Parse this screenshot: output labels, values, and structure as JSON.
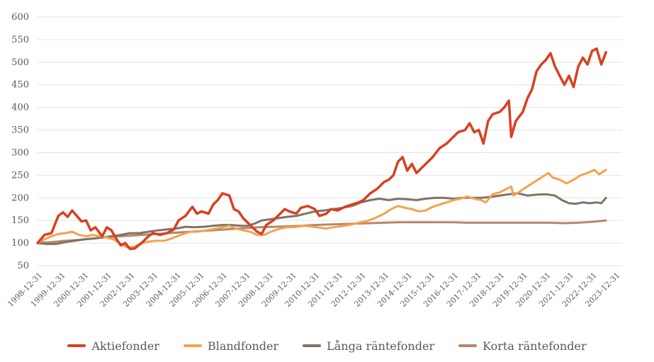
{
  "chart_data": {
    "type": "line",
    "title": "",
    "xlabel": "",
    "ylabel": "",
    "ylim": [
      50,
      600
    ],
    "yticks": [
      50,
      100,
      150,
      200,
      250,
      300,
      350,
      400,
      450,
      500,
      550,
      600
    ],
    "xticks": [
      "1998-12-31",
      "1999-12-31",
      "2000-12-31",
      "2001-12-31",
      "2002-12-31",
      "2003-12-31",
      "2004-12-31",
      "2005-12-31",
      "2006-12-31",
      "2007-12-31",
      "2008-12-31",
      "2009-12-31",
      "2010-12-31",
      "2011-12-31",
      "2012-12-31",
      "2013-12-31",
      "2014-12-31",
      "2015-12-31",
      "2016-12-31",
      "2017-12-31",
      "2018-12-31",
      "2019-12-31",
      "2020-12-31",
      "2021-12-31",
      "2022-12-31",
      "2023-12-31"
    ],
    "xlim": [
      1998.9,
      2024.2
    ],
    "grid": "horizontal",
    "legend_position": "bottom",
    "series": [
      {
        "name": "Aktiefonder",
        "color": "#d9401f",
        "points": [
          [
            1998.9,
            100
          ],
          [
            1999.2,
            118
          ],
          [
            1999.5,
            122
          ],
          [
            1999.8,
            160
          ],
          [
            2000.0,
            168
          ],
          [
            2000.2,
            158
          ],
          [
            2000.4,
            172
          ],
          [
            2000.6,
            160
          ],
          [
            2000.8,
            148
          ],
          [
            2001.0,
            150
          ],
          [
            2001.2,
            128
          ],
          [
            2001.4,
            135
          ],
          [
            2001.7,
            115
          ],
          [
            2001.9,
            135
          ],
          [
            2002.1,
            128
          ],
          [
            2002.3,
            110
          ],
          [
            2002.5,
            95
          ],
          [
            2002.7,
            100
          ],
          [
            2002.9,
            87
          ],
          [
            2003.1,
            88
          ],
          [
            2003.4,
            100
          ],
          [
            2003.7,
            115
          ],
          [
            2003.9,
            122
          ],
          [
            2004.2,
            118
          ],
          [
            2004.5,
            122
          ],
          [
            2004.8,
            130
          ],
          [
            2005.0,
            150
          ],
          [
            2005.3,
            160
          ],
          [
            2005.6,
            180
          ],
          [
            2005.8,
            165
          ],
          [
            2006.0,
            170
          ],
          [
            2006.3,
            165
          ],
          [
            2006.5,
            185
          ],
          [
            2006.7,
            195
          ],
          [
            2006.9,
            210
          ],
          [
            2007.2,
            205
          ],
          [
            2007.4,
            175
          ],
          [
            2007.6,
            170
          ],
          [
            2007.8,
            155
          ],
          [
            2008.0,
            145
          ],
          [
            2008.2,
            135
          ],
          [
            2008.4,
            125
          ],
          [
            2008.6,
            120
          ],
          [
            2008.8,
            140
          ],
          [
            2009.1,
            150
          ],
          [
            2009.4,
            165
          ],
          [
            2009.6,
            175
          ],
          [
            2009.8,
            170
          ],
          [
            2010.1,
            165
          ],
          [
            2010.3,
            178
          ],
          [
            2010.6,
            182
          ],
          [
            2010.9,
            175
          ],
          [
            2011.1,
            160
          ],
          [
            2011.4,
            165
          ],
          [
            2011.6,
            175
          ],
          [
            2011.9,
            172
          ],
          [
            2012.2,
            180
          ],
          [
            2012.5,
            185
          ],
          [
            2012.8,
            190
          ],
          [
            2013.0,
            195
          ],
          [
            2013.3,
            210
          ],
          [
            2013.6,
            220
          ],
          [
            2013.9,
            235
          ],
          [
            2014.1,
            240
          ],
          [
            2014.3,
            250
          ],
          [
            2014.5,
            280
          ],
          [
            2014.7,
            290
          ],
          [
            2014.9,
            260
          ],
          [
            2015.1,
            275
          ],
          [
            2015.3,
            255
          ],
          [
            2015.5,
            265
          ],
          [
            2015.8,
            280
          ],
          [
            2016.0,
            290
          ],
          [
            2016.3,
            310
          ],
          [
            2016.6,
            320
          ],
          [
            2016.9,
            335
          ],
          [
            2017.1,
            345
          ],
          [
            2017.4,
            350
          ],
          [
            2017.6,
            365
          ],
          [
            2017.8,
            345
          ],
          [
            2018.0,
            350
          ],
          [
            2018.2,
            320
          ],
          [
            2018.4,
            370
          ],
          [
            2018.6,
            385
          ],
          [
            2018.9,
            390
          ],
          [
            2019.1,
            400
          ],
          [
            2019.3,
            415
          ],
          [
            2019.4,
            335
          ],
          [
            2019.6,
            370
          ],
          [
            2019.9,
            390
          ],
          [
            2020.1,
            420
          ],
          [
            2020.3,
            440
          ],
          [
            2020.5,
            480
          ],
          [
            2020.7,
            495
          ],
          [
            2020.9,
            505
          ],
          [
            2021.1,
            520
          ],
          [
            2021.3,
            490
          ],
          [
            2021.5,
            470
          ],
          [
            2021.7,
            450
          ],
          [
            2021.9,
            470
          ],
          [
            2022.1,
            445
          ],
          [
            2022.3,
            490
          ],
          [
            2022.5,
            510
          ],
          [
            2022.7,
            495
          ],
          [
            2022.9,
            525
          ],
          [
            2023.1,
            530
          ],
          [
            2023.3,
            495
          ],
          [
            2023.5,
            522
          ]
        ]
      },
      {
        "name": "Blandfonder",
        "color": "#f4a14f",
        "points": [
          [
            1998.9,
            100
          ],
          [
            1999.2,
            108
          ],
          [
            1999.5,
            115
          ],
          [
            1999.8,
            120
          ],
          [
            2000.1,
            122
          ],
          [
            2000.4,
            125
          ],
          [
            2000.7,
            118
          ],
          [
            2001.0,
            115
          ],
          [
            2001.3,
            118
          ],
          [
            2001.6,
            115
          ],
          [
            2001.9,
            112
          ],
          [
            2002.2,
            108
          ],
          [
            2002.5,
            98
          ],
          [
            2002.8,
            90
          ],
          [
            2003.1,
            92
          ],
          [
            2003.4,
            100
          ],
          [
            2003.7,
            103
          ],
          [
            2004.0,
            105
          ],
          [
            2004.4,
            105
          ],
          [
            2004.8,
            112
          ],
          [
            2005.1,
            118
          ],
          [
            2005.5,
            125
          ],
          [
            2005.8,
            125
          ],
          [
            2006.2,
            128
          ],
          [
            2006.6,
            132
          ],
          [
            2006.9,
            135
          ],
          [
            2007.2,
            138
          ],
          [
            2007.5,
            132
          ],
          [
            2007.8,
            128
          ],
          [
            2008.1,
            125
          ],
          [
            2008.4,
            118
          ],
          [
            2008.7,
            118
          ],
          [
            2009.0,
            125
          ],
          [
            2009.4,
            132
          ],
          [
            2009.7,
            135
          ],
          [
            2010.0,
            135
          ],
          [
            2010.4,
            138
          ],
          [
            2010.7,
            137
          ],
          [
            2011.0,
            135
          ],
          [
            2011.4,
            132
          ],
          [
            2011.7,
            135
          ],
          [
            2012.0,
            137
          ],
          [
            2012.4,
            140
          ],
          [
            2012.8,
            145
          ],
          [
            2013.1,
            148
          ],
          [
            2013.5,
            155
          ],
          [
            2013.9,
            165
          ],
          [
            2014.2,
            175
          ],
          [
            2014.5,
            182
          ],
          [
            2014.8,
            178
          ],
          [
            2015.1,
            175
          ],
          [
            2015.4,
            170
          ],
          [
            2015.7,
            172
          ],
          [
            2016.0,
            180
          ],
          [
            2016.3,
            185
          ],
          [
            2016.6,
            190
          ],
          [
            2016.9,
            195
          ],
          [
            2017.2,
            198
          ],
          [
            2017.5,
            203
          ],
          [
            2017.8,
            198
          ],
          [
            2018.1,
            195
          ],
          [
            2018.3,
            190
          ],
          [
            2018.6,
            208
          ],
          [
            2018.9,
            212
          ],
          [
            2019.2,
            220
          ],
          [
            2019.4,
            225
          ],
          [
            2019.5,
            205
          ],
          [
            2019.8,
            215
          ],
          [
            2020.1,
            225
          ],
          [
            2020.4,
            235
          ],
          [
            2020.7,
            245
          ],
          [
            2021.0,
            255
          ],
          [
            2021.2,
            245
          ],
          [
            2021.5,
            240
          ],
          [
            2021.8,
            232
          ],
          [
            2022.1,
            240
          ],
          [
            2022.4,
            250
          ],
          [
            2022.7,
            255
          ],
          [
            2023.0,
            262
          ],
          [
            2023.2,
            252
          ],
          [
            2023.5,
            262
          ]
        ]
      },
      {
        "name": "Långa räntefonder",
        "color": "#7f7366",
        "points": [
          [
            1998.9,
            100
          ],
          [
            1999.3,
            98
          ],
          [
            1999.7,
            98
          ],
          [
            2000.1,
            102
          ],
          [
            2000.5,
            105
          ],
          [
            2000.9,
            108
          ],
          [
            2001.3,
            110
          ],
          [
            2001.7,
            112
          ],
          [
            2002.1,
            115
          ],
          [
            2002.5,
            118
          ],
          [
            2002.9,
            122
          ],
          [
            2003.3,
            122
          ],
          [
            2003.7,
            125
          ],
          [
            2004.1,
            128
          ],
          [
            2004.5,
            130
          ],
          [
            2004.9,
            132
          ],
          [
            2005.3,
            136
          ],
          [
            2005.7,
            135
          ],
          [
            2006.1,
            136
          ],
          [
            2006.5,
            138
          ],
          [
            2006.9,
            140
          ],
          [
            2007.3,
            140
          ],
          [
            2007.7,
            138
          ],
          [
            2008.0,
            138
          ],
          [
            2008.3,
            143
          ],
          [
            2008.6,
            150
          ],
          [
            2008.9,
            152
          ],
          [
            2009.3,
            155
          ],
          [
            2009.7,
            158
          ],
          [
            2010.1,
            160
          ],
          [
            2010.5,
            165
          ],
          [
            2010.9,
            170
          ],
          [
            2011.3,
            172
          ],
          [
            2011.7,
            175
          ],
          [
            2012.1,
            178
          ],
          [
            2012.5,
            182
          ],
          [
            2012.9,
            190
          ],
          [
            2013.3,
            195
          ],
          [
            2013.7,
            198
          ],
          [
            2014.1,
            195
          ],
          [
            2014.5,
            198
          ],
          [
            2014.9,
            197
          ],
          [
            2015.3,
            195
          ],
          [
            2015.7,
            198
          ],
          [
            2016.1,
            200
          ],
          [
            2016.5,
            200
          ],
          [
            2016.9,
            198
          ],
          [
            2017.3,
            200
          ],
          [
            2017.7,
            200
          ],
          [
            2018.1,
            200
          ],
          [
            2018.5,
            202
          ],
          [
            2018.9,
            205
          ],
          [
            2019.3,
            208
          ],
          [
            2019.7,
            210
          ],
          [
            2020.1,
            205
          ],
          [
            2020.5,
            207
          ],
          [
            2020.9,
            208
          ],
          [
            2021.3,
            205
          ],
          [
            2021.6,
            195
          ],
          [
            2021.9,
            188
          ],
          [
            2022.2,
            187
          ],
          [
            2022.5,
            190
          ],
          [
            2022.8,
            188
          ],
          [
            2023.1,
            190
          ],
          [
            2023.3,
            188
          ],
          [
            2023.5,
            200
          ]
        ]
      },
      {
        "name": "Korta räntefonder",
        "color": "#b5876a",
        "points": [
          [
            1998.9,
            100
          ],
          [
            1999.5,
            102
          ],
          [
            2000.1,
            105
          ],
          [
            2000.7,
            107
          ],
          [
            2001.3,
            110
          ],
          [
            2001.9,
            113
          ],
          [
            2002.5,
            115
          ],
          [
            2003.1,
            117
          ],
          [
            2003.7,
            119
          ],
          [
            2004.3,
            121
          ],
          [
            2004.9,
            123
          ],
          [
            2005.5,
            125
          ],
          [
            2006.1,
            127
          ],
          [
            2006.7,
            129
          ],
          [
            2007.3,
            131
          ],
          [
            2007.9,
            133
          ],
          [
            2008.5,
            135
          ],
          [
            2009.1,
            136
          ],
          [
            2009.7,
            137
          ],
          [
            2010.3,
            138
          ],
          [
            2010.9,
            140
          ],
          [
            2011.5,
            141
          ],
          [
            2012.1,
            142
          ],
          [
            2012.7,
            143
          ],
          [
            2013.3,
            144
          ],
          [
            2013.9,
            145
          ],
          [
            2014.5,
            146
          ],
          [
            2015.1,
            146
          ],
          [
            2015.7,
            146
          ],
          [
            2016.3,
            146
          ],
          [
            2016.9,
            146
          ],
          [
            2017.5,
            145
          ],
          [
            2018.1,
            145
          ],
          [
            2018.7,
            145
          ],
          [
            2019.3,
            145
          ],
          [
            2019.9,
            145
          ],
          [
            2020.5,
            145
          ],
          [
            2021.1,
            145
          ],
          [
            2021.7,
            144
          ],
          [
            2022.3,
            145
          ],
          [
            2022.9,
            147
          ],
          [
            2023.5,
            150
          ]
        ]
      }
    ]
  }
}
